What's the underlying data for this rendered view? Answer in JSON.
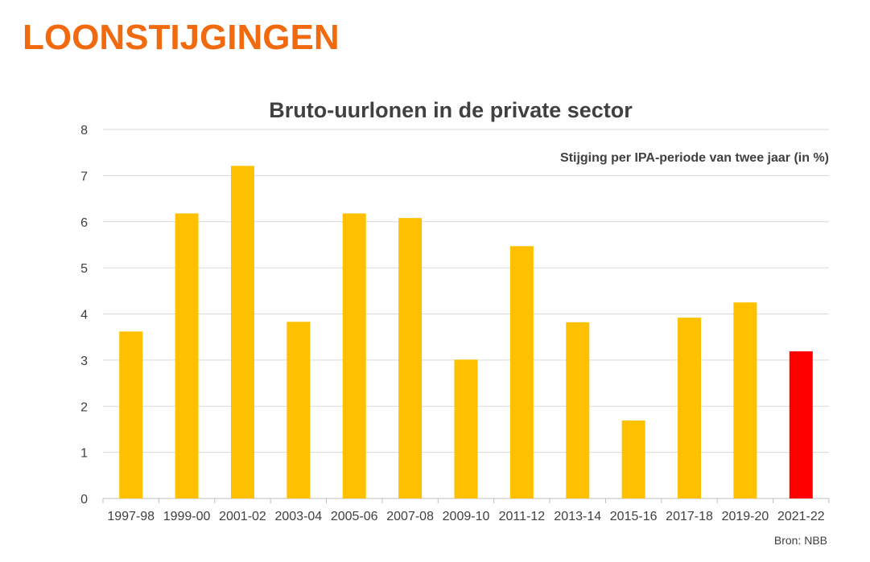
{
  "slide": {
    "title": "LOONSTIJGINGEN"
  },
  "chart_data": {
    "type": "bar",
    "title": "Bruto-uurlonen in de private sector",
    "subtitle": "Stijging per IPA-periode van twee jaar (in %)",
    "source": "Bron: NBB",
    "xlabel": "",
    "ylabel": "",
    "ylim": [
      0,
      8
    ],
    "yticks": [
      0,
      1,
      2,
      3,
      4,
      5,
      6,
      7,
      8
    ],
    "grid": true,
    "categories": [
      "1997-98",
      "1999-00",
      "2001-02",
      "2003-04",
      "2005-06",
      "2007-08",
      "2009-10",
      "2011-12",
      "2013-14",
      "2015-16",
      "2017-18",
      "2019-20",
      "2021-22"
    ],
    "values": [
      3.62,
      6.18,
      7.21,
      3.83,
      6.18,
      6.08,
      3.01,
      5.47,
      3.82,
      1.69,
      3.92,
      4.25,
      3.19
    ],
    "colors": [
      "#FFC000",
      "#FFC000",
      "#FFC000",
      "#FFC000",
      "#FFC000",
      "#FFC000",
      "#FFC000",
      "#FFC000",
      "#FFC000",
      "#FFC000",
      "#FFC000",
      "#FFC000",
      "#FF0000"
    ]
  }
}
